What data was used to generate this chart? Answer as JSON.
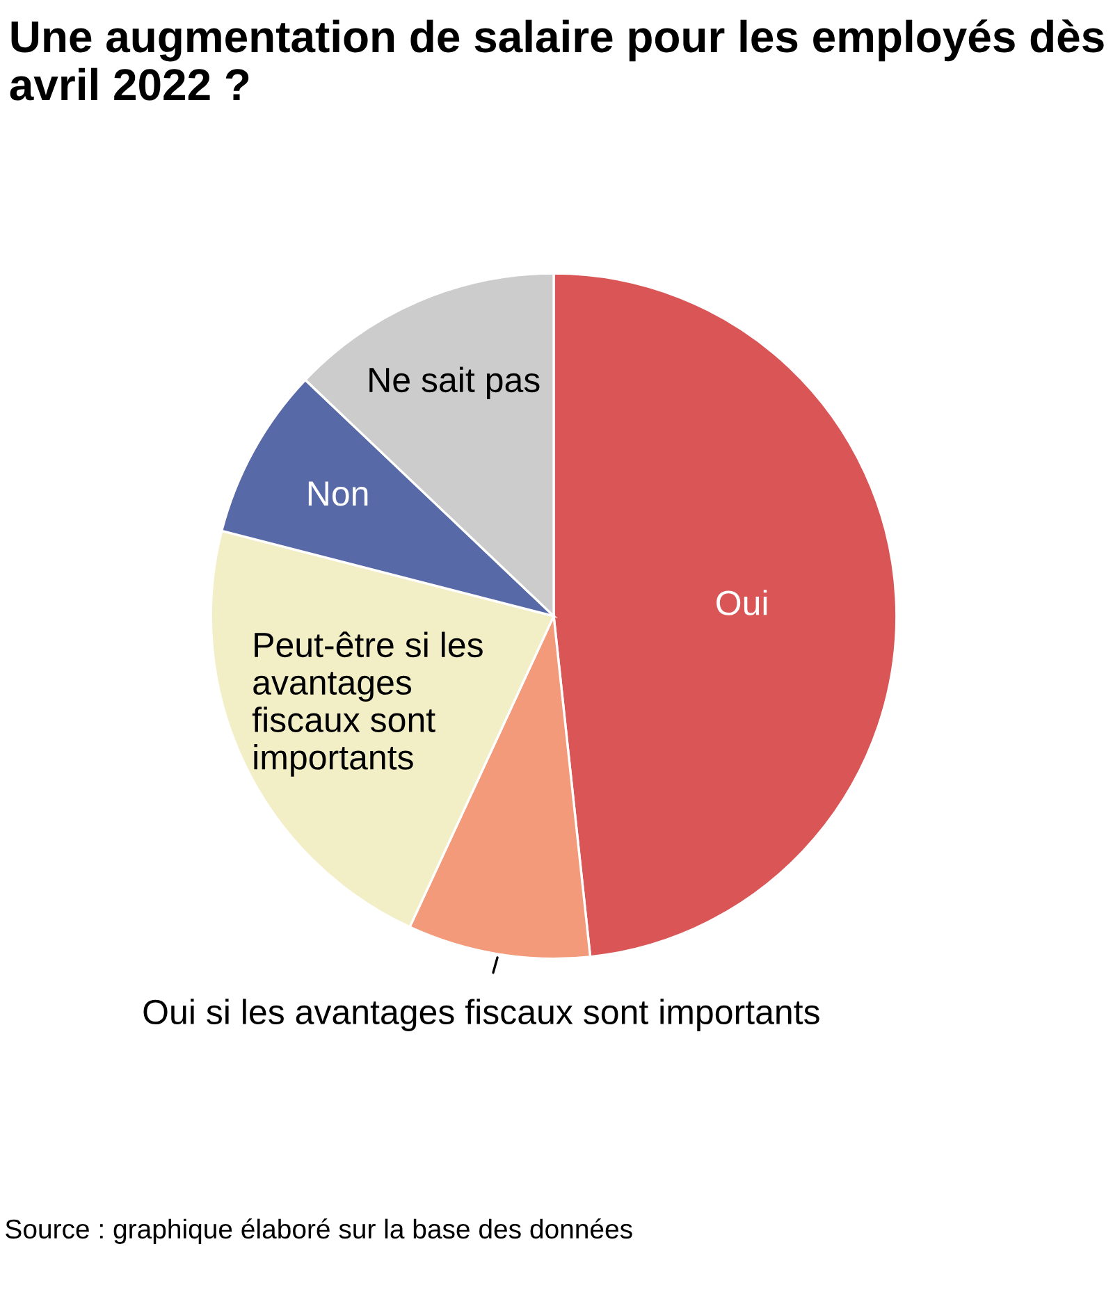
{
  "chart_data": {
    "type": "pie",
    "title": "Une augmentation de salaire pour les employés dès avril 2022 ?",
    "categories": [
      "Oui",
      "Oui si les avantages fiscaux sont importants",
      "Peut-être si les\navantages\nfiscaux sont\nimportants",
      "Non",
      "Ne sait pas"
    ],
    "values": [
      48.3,
      8.6,
      22.1,
      8.1,
      12.9
    ],
    "colors": [
      "#d95556",
      "#f29a7a",
      "#f2eec6",
      "#5869a8",
      "#cccccc"
    ],
    "annotations": [
      "Source : graphique élaboré sur la base des données"
    ]
  }
}
